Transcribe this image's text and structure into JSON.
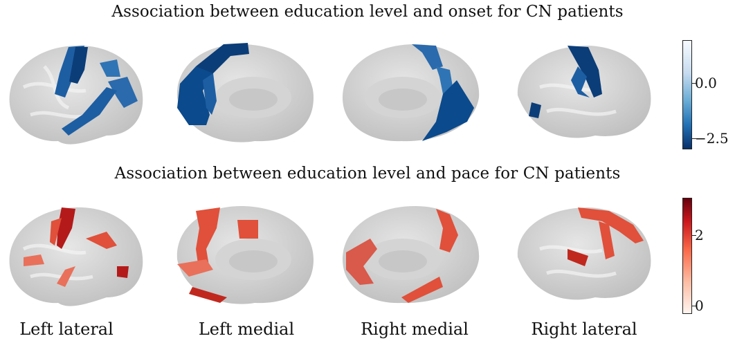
{
  "figure": {
    "onset_title": "Association between education level and onset for CN patients",
    "pace_title": "Association between education level and pace for CN patients"
  },
  "views": [
    "Left lateral",
    "Left medial",
    "Right medial",
    "Right lateral"
  ],
  "colorbars": {
    "onset": {
      "colormap": "Blues_r",
      "ticks": [
        "0.0",
        "−2.5"
      ],
      "tick_values": [
        0.0,
        -2.5
      ]
    },
    "pace": {
      "colormap": "Reds",
      "ticks": [
        "2",
        "0"
      ],
      "tick_values": [
        2,
        0
      ]
    }
  },
  "colors": {
    "brain": "#d9d9d9",
    "onset_dark": "#0b4a8c",
    "onset_mid": "#2f74b5",
    "pace_dark": "#a81414",
    "pace_mid": "#e0503a",
    "pace_light": "#e9705a"
  }
}
